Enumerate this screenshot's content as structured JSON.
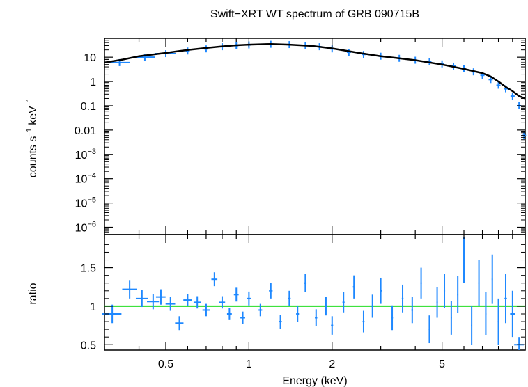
{
  "chart_data": {
    "title": "Swift−XRT WT spectrum of GRB 090715B",
    "xlabel": "Energy (keV)",
    "x_scale": "log",
    "xlim": [
      0.3,
      10
    ],
    "x_ticks": [
      {
        "value": 0.5,
        "label": "0.5"
      },
      {
        "value": 1,
        "label": "1"
      },
      {
        "value": 2,
        "label": "2"
      },
      {
        "value": 5,
        "label": "5"
      }
    ],
    "panels": [
      {
        "type": "scatter",
        "y_scale": "log",
        "ylim": [
          5e-07,
          60
        ],
        "ylabel": {
          "base": "counts s",
          "sup1": "−1",
          "mid": " keV",
          "sup2": "−1"
        },
        "y_ticks": [
          {
            "value": 10,
            "label": "10",
            "sup": ""
          },
          {
            "value": 1,
            "label": "1",
            "sup": ""
          },
          {
            "value": 0.1,
            "label": "0.1",
            "sup": ""
          },
          {
            "value": 0.01,
            "label": "0.01",
            "sup": ""
          },
          {
            "value": 0.001,
            "label": "10",
            "sup": "−3"
          },
          {
            "value": 0.0001,
            "label": "10",
            "sup": "−4"
          },
          {
            "value": 1e-05,
            "label": "10",
            "sup": "−5"
          },
          {
            "value": 1e-06,
            "label": "10",
            "sup": "−6"
          }
        ],
        "series": [
          {
            "kind": "data",
            "color": "#1e88ff",
            "x": [
              0.34,
              0.42,
              0.5,
              0.6,
              0.7,
              0.8,
              0.9,
              1.0,
              1.2,
              1.4,
              1.6,
              1.8,
              2.0,
              2.3,
              2.6,
              3.0,
              3.5,
              4.0,
              4.5,
              5.0,
              5.5,
              6.0,
              6.5,
              7.0,
              7.5,
              8.0,
              8.5,
              9.0,
              9.5,
              9.9
            ],
            "y": [
              6,
              10,
              14,
              18,
              22,
              27,
              30,
              32,
              34,
              33,
              30,
              27,
              22,
              16,
              13,
              11,
              9,
              7.5,
              6.5,
              5.3,
              4.3,
              3.3,
              2.5,
              1.8,
              1.2,
              0.7,
              0.5,
              0.25,
              0.1,
              0.006
            ]
          },
          {
            "kind": "model",
            "color": "#000000",
            "x": [
              0.3,
              0.35,
              0.4,
              0.5,
              0.6,
              0.7,
              0.8,
              0.9,
              1.0,
              1.2,
              1.4,
              1.7,
              2.0,
              2.5,
              3.0,
              3.5,
              4.0,
              5.0,
              6.0,
              7.0,
              7.5,
              8.0,
              8.5,
              9.0,
              9.5,
              10.0
            ],
            "y": [
              6,
              8,
              11,
              15,
              20,
              24,
              28,
              31,
              33,
              35,
              33,
              29,
              23,
              15,
              11,
              9,
              7.5,
              5,
              3.3,
              2.2,
              1.6,
              1.0,
              0.6,
              0.4,
              0.25,
              0.2
            ]
          }
        ]
      },
      {
        "type": "scatter",
        "y_scale": "linear",
        "ylim": [
          0.43,
          1.93
        ],
        "ylabel": "ratio",
        "y_ticks": [
          {
            "value": 0.5,
            "label": "0.5"
          },
          {
            "value": 1,
            "label": "1"
          },
          {
            "value": 1.5,
            "label": "1.5"
          }
        ],
        "reference_line": {
          "y": 1,
          "color": "#22dd22"
        },
        "series": [
          {
            "kind": "data",
            "color": "#1e88ff",
            "x": [
              0.32,
              0.37,
              0.41,
              0.45,
              0.48,
              0.52,
              0.56,
              0.6,
              0.65,
              0.7,
              0.75,
              0.8,
              0.85,
              0.9,
              0.95,
              1.0,
              1.1,
              1.2,
              1.3,
              1.4,
              1.5,
              1.6,
              1.75,
              1.9,
              2.0,
              2.2,
              2.4,
              2.6,
              2.8,
              3.0,
              3.3,
              3.6,
              3.9,
              4.2,
              4.5,
              4.8,
              5.1,
              5.4,
              5.7,
              6.0,
              6.4,
              6.8,
              7.2,
              7.6,
              8.0,
              8.5,
              9.0,
              9.5
            ],
            "y": [
              0.9,
              1.22,
              1.1,
              1.06,
              1.12,
              1.03,
              0.78,
              1.08,
              1.05,
              0.95,
              1.35,
              1.05,
              0.9,
              1.15,
              0.85,
              1.1,
              0.95,
              1.2,
              0.8,
              1.1,
              0.9,
              1.3,
              0.85,
              1.0,
              0.75,
              1.05,
              1.25,
              0.8,
              1.0,
              1.2,
              0.85,
              1.1,
              0.95,
              1.3,
              0.7,
              1.05,
              1.2,
              0.85,
              1.15,
              1.6,
              0.75,
              1.3,
              0.9,
              1.35,
              0.8,
              1.1,
              0.9,
              0.5
            ],
            "xerr_frac": [
              0.08,
              0.06,
              0.05,
              0.05,
              0.04,
              0.04,
              0.035,
              0.035,
              0.03,
              0.03,
              0.025,
              0.025,
              0.02,
              0.02,
              0.02,
              0.018,
              0.015,
              0.015,
              0.012,
              0.012,
              0.012,
              0.01,
              0.01,
              0.01,
              0.009,
              0.009,
              0.009,
              0.008,
              0.008,
              0.008,
              0.007,
              0.007,
              0.007,
              0.006,
              0.006,
              0.006,
              0.006,
              0.005,
              0.005,
              0.005,
              0.005,
              0.005,
              0.005,
              0.005,
              0.006,
              0.01,
              0.02,
              0.04
            ],
            "yerr": [
              0.12,
              0.12,
              0.11,
              0.1,
              0.1,
              0.09,
              0.09,
              0.08,
              0.08,
              0.08,
              0.09,
              0.08,
              0.08,
              0.09,
              0.08,
              0.09,
              0.08,
              0.1,
              0.09,
              0.1,
              0.1,
              0.12,
              0.11,
              0.12,
              0.12,
              0.13,
              0.15,
              0.14,
              0.15,
              0.17,
              0.16,
              0.18,
              0.17,
              0.2,
              0.18,
              0.2,
              0.22,
              0.22,
              0.24,
              0.3,
              0.25,
              0.3,
              0.28,
              0.32,
              0.3,
              0.32,
              0.3,
              0.1
            ]
          }
        ]
      }
    ]
  }
}
